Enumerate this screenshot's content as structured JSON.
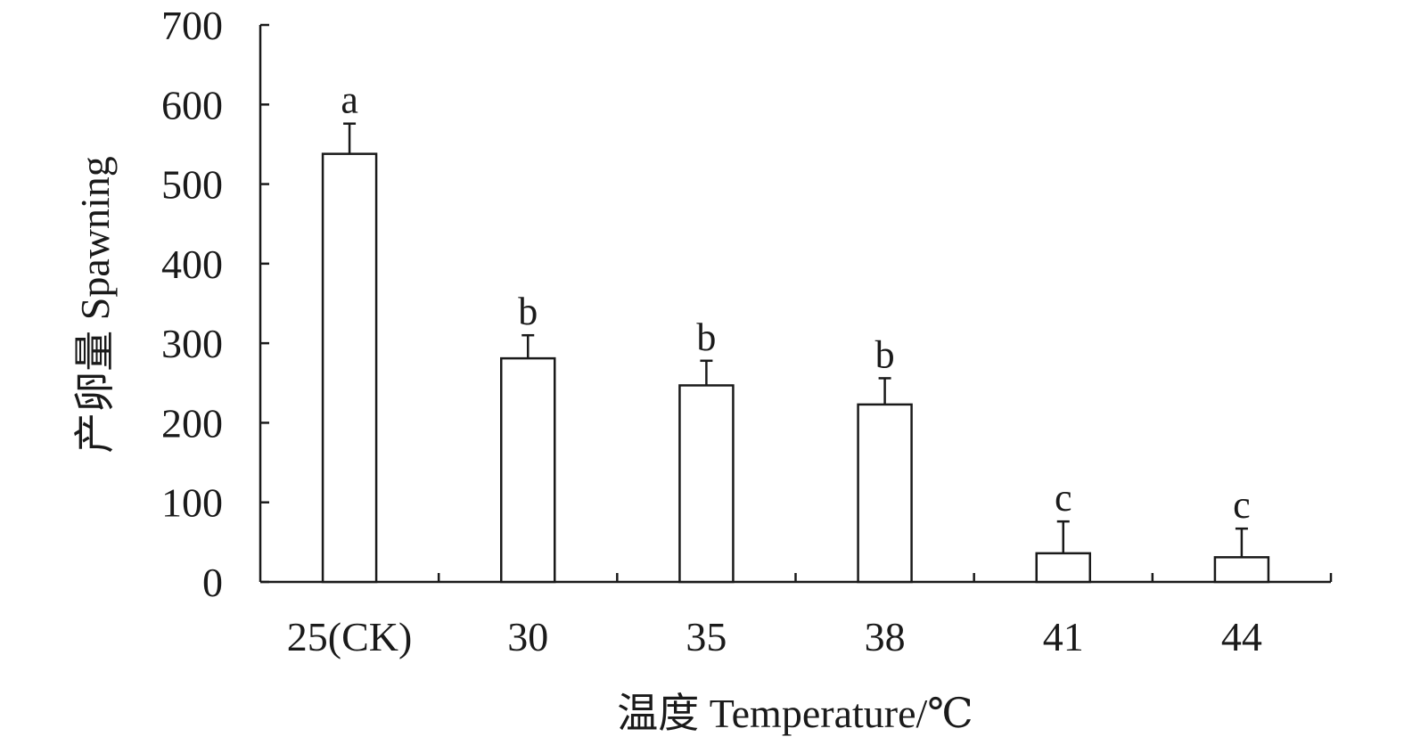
{
  "chart_data": {
    "type": "bar",
    "title": "",
    "xlabel": "温度 Temperature/℃",
    "ylabel": "产卵量 Spawning",
    "categories": [
      "25(CK)",
      "30",
      "35",
      "38",
      "41",
      "44"
    ],
    "values": [
      538,
      281,
      247,
      223,
      36,
      31
    ],
    "error_upper": [
      576,
      310,
      278,
      256,
      76,
      67
    ],
    "significance": [
      "a",
      "b",
      "b",
      "b",
      "c",
      "c"
    ],
    "ylim": [
      0,
      700
    ],
    "yticks": [
      0,
      100,
      200,
      300,
      400,
      500,
      600,
      700
    ],
    "grid": false,
    "legend": "none",
    "colors": {
      "bar_fill": "#ffffff",
      "stroke": "#1a1a1a"
    }
  }
}
